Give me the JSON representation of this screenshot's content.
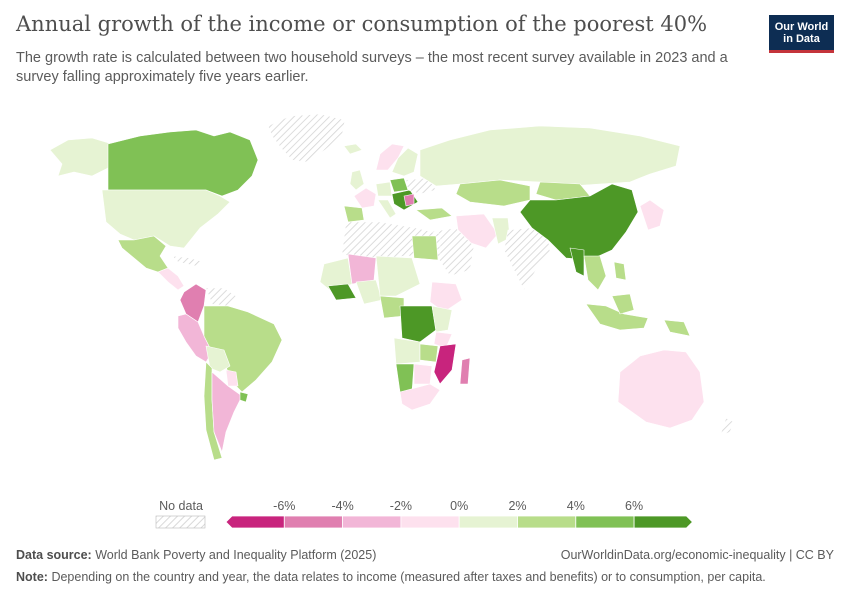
{
  "header": {
    "title": "Annual growth of the income or consumption of the poorest 40%",
    "subtitle": "The growth rate is calculated between two household surveys – the most recent survey available in 2023 and a survey falling approximately five years earlier.",
    "logo_line1": "Our World",
    "logo_line2": "in Data"
  },
  "colors": {
    "no_data": "#e6e6e6",
    "bins": [
      "#c8247d",
      "#e07fb0",
      "#f2b6d7",
      "#fde1ee",
      "#e6f3d3",
      "#b8dd8a",
      "#80c155",
      "#4d9826"
    ]
  },
  "legend": {
    "no_data_label": "No data",
    "tick_labels": [
      "-6%",
      "-4%",
      "-2%",
      "0%",
      "2%",
      "4%",
      "6%"
    ]
  },
  "footer": {
    "source_label": "Data source:",
    "source_text": "World Bank Poverty and Inequality Platform (2025)",
    "url": "OurWorldinData.org/economic-inequality | CC BY",
    "note_label": "Note:",
    "note_text": "Depending on the country and year, the data relates to income (measured after taxes and benefits) or to consumption, per capita."
  }
}
